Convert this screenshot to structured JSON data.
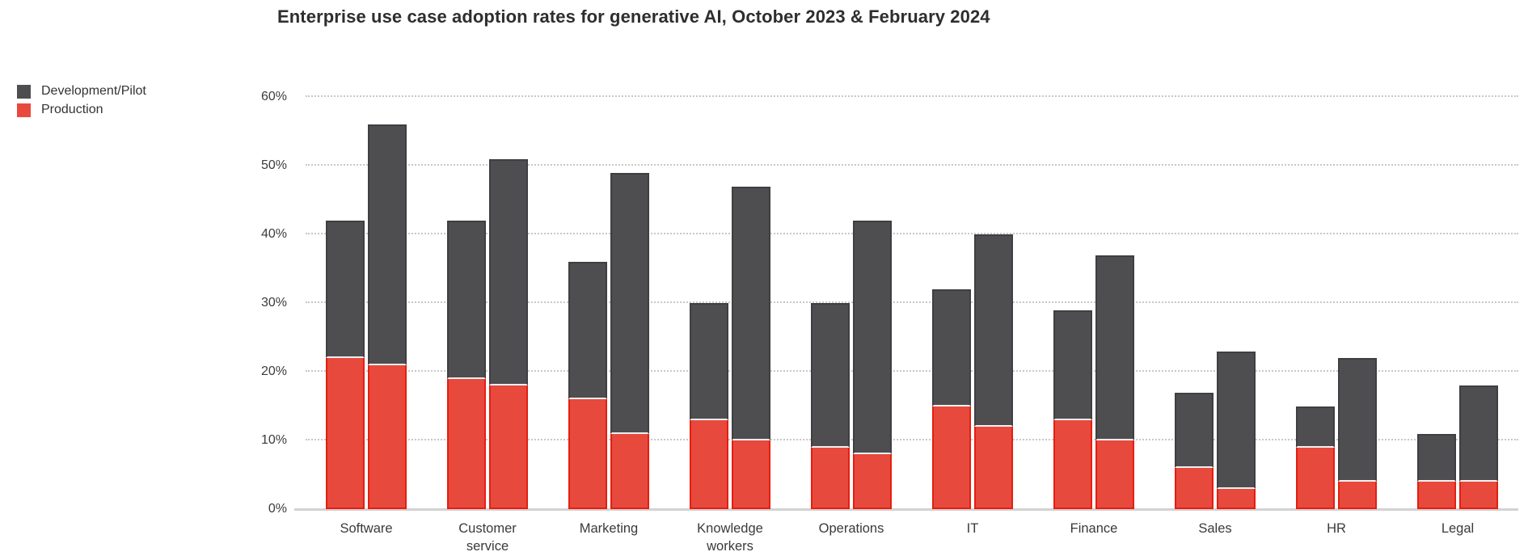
{
  "title": "Enterprise use case adoption rates for generative AI, October 2023 & February 2024",
  "legend": {
    "items": [
      {
        "label": "Development/Pilot",
        "color": "#4e4d50"
      },
      {
        "label": "Production",
        "color": "#e8493d"
      }
    ]
  },
  "colors": {
    "development_pilot_fill": "#4e4d50",
    "development_pilot_border": "#3f3e42",
    "production_fill": "#e8493d",
    "production_border": "#e51e10",
    "gridline": "#c8c8c8",
    "baseline": "#d2d2d2",
    "text": "#363636"
  },
  "chart_data": {
    "type": "bar",
    "subtype": "grouped-stacked",
    "title": "Enterprise use case adoption rates for generative AI, October 2023 & February 2024",
    "categories": [
      "Software",
      "Customer service",
      "Marketing",
      "Knowledge workers",
      "Operations",
      "IT",
      "Finance",
      "Sales",
      "HR",
      "Legal"
    ],
    "groups": [
      "October 2023",
      "February 2024"
    ],
    "stack_segments": [
      "Production",
      "Development/Pilot"
    ],
    "series": [
      {
        "name": "October 2023 - Production",
        "values": [
          22,
          19,
          16,
          13,
          9,
          15,
          13,
          6,
          9,
          4
        ]
      },
      {
        "name": "October 2023 - Development/Pilot",
        "values": [
          20,
          23,
          20,
          17,
          21,
          17,
          16,
          11,
          6,
          7
        ]
      },
      {
        "name": "February 2024 - Production",
        "values": [
          21,
          18,
          11,
          10,
          8,
          12,
          10,
          3,
          4,
          4
        ]
      },
      {
        "name": "February 2024 - Development/Pilot",
        "values": [
          35,
          33,
          38,
          37,
          34,
          28,
          27,
          20,
          18,
          14
        ]
      }
    ],
    "stack_totals": {
      "october_2023": [
        42,
        42,
        36,
        30,
        30,
        32,
        29,
        17,
        15,
        11
      ],
      "february_2024": [
        56,
        51,
        49,
        47,
        42,
        40,
        37,
        23,
        22,
        18
      ]
    },
    "xlabel": "",
    "ylabel": "",
    "ylim": [
      0,
      60
    ],
    "y_ticks": [
      0,
      10,
      20,
      30,
      40,
      50,
      60
    ],
    "y_tick_labels": [
      "0%",
      "10%",
      "20%",
      "30%",
      "40%",
      "50%",
      "60%"
    ],
    "grid": "horizontal-dotted",
    "legend_position": "top-left"
  }
}
